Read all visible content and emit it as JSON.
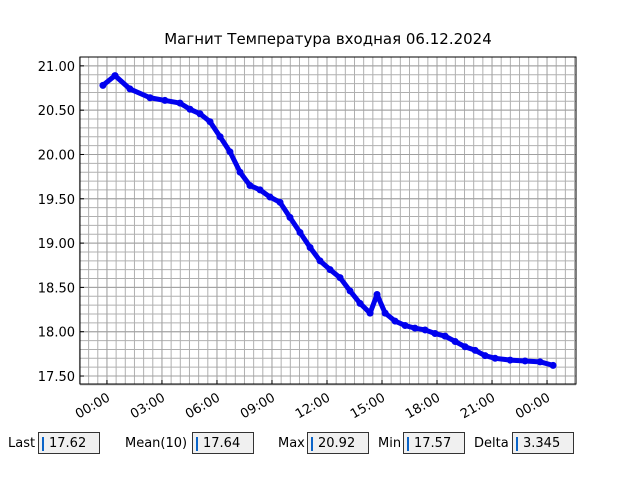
{
  "chart_data": {
    "type": "line",
    "title": "Магнит Температура входная 06.12.2024",
    "x": [
      -0.22,
      0.44,
      1.25,
      2.35,
      3.16,
      3.98,
      4.53,
      5.07,
      5.62,
      6.17,
      6.71,
      7.26,
      7.8,
      8.35,
      8.89,
      9.44,
      9.98,
      10.53,
      11.08,
      11.62,
      12.17,
      12.71,
      13.26,
      13.8,
      14.35,
      14.73,
      15.17,
      15.71,
      16.26,
      16.8,
      17.35,
      17.89,
      18.44,
      18.99,
      19.53,
      20.08,
      20.62,
      21.17,
      21.99,
      22.8,
      23.62,
      24.33
    ],
    "series": [
      {
        "color": "#0000ee",
        "values": [
          20.78,
          20.89,
          20.74,
          20.64,
          20.61,
          20.58,
          20.51,
          20.46,
          20.37,
          20.2,
          20.03,
          19.8,
          19.65,
          19.6,
          19.52,
          19.46,
          19.29,
          19.12,
          18.95,
          18.8,
          18.7,
          18.61,
          18.46,
          18.32,
          18.21,
          18.42,
          18.21,
          18.12,
          18.07,
          18.04,
          18.02,
          17.98,
          17.95,
          17.89,
          17.83,
          17.79,
          17.73,
          17.7,
          17.68,
          17.67,
          17.66,
          17.62
        ]
      }
    ],
    "xlim": [
      -1.47,
      25.58
    ],
    "ylim": [
      17.41,
      21.1
    ],
    "xticks": [
      {
        "value": 0,
        "label": "00:00"
      },
      {
        "value": 3,
        "label": "03:00"
      },
      {
        "value": 6,
        "label": "06:00"
      },
      {
        "value": 9,
        "label": "09:00"
      },
      {
        "value": 12,
        "label": "12:00"
      },
      {
        "value": 15,
        "label": "15:00"
      },
      {
        "value": 18,
        "label": "18:00"
      },
      {
        "value": 21,
        "label": "21:00"
      },
      {
        "value": 24,
        "label": "00:00"
      }
    ],
    "yticks": [
      {
        "value": 17.5,
        "label": "17.50"
      },
      {
        "value": 18,
        "label": "18.00"
      },
      {
        "value": 18.5,
        "label": "18.50"
      },
      {
        "value": 19,
        "label": "19.00"
      },
      {
        "value": 19.5,
        "label": "19.50"
      },
      {
        "value": 20,
        "label": "20.00"
      },
      {
        "value": 20.5,
        "label": "20.50"
      },
      {
        "value": 21,
        "label": "21.00"
      }
    ],
    "grid": true,
    "x_minor_per_major": 6,
    "y_minor_per_major": 5
  },
  "stats": [
    {
      "label": "Last",
      "value": "17.62"
    },
    {
      "label": "Mean(10)",
      "value": "17.64"
    },
    {
      "label": "Max",
      "value": "20.92"
    },
    {
      "label": "Min",
      "value": "17.57"
    },
    {
      "label": "Delta",
      "value": "3.345"
    }
  ]
}
